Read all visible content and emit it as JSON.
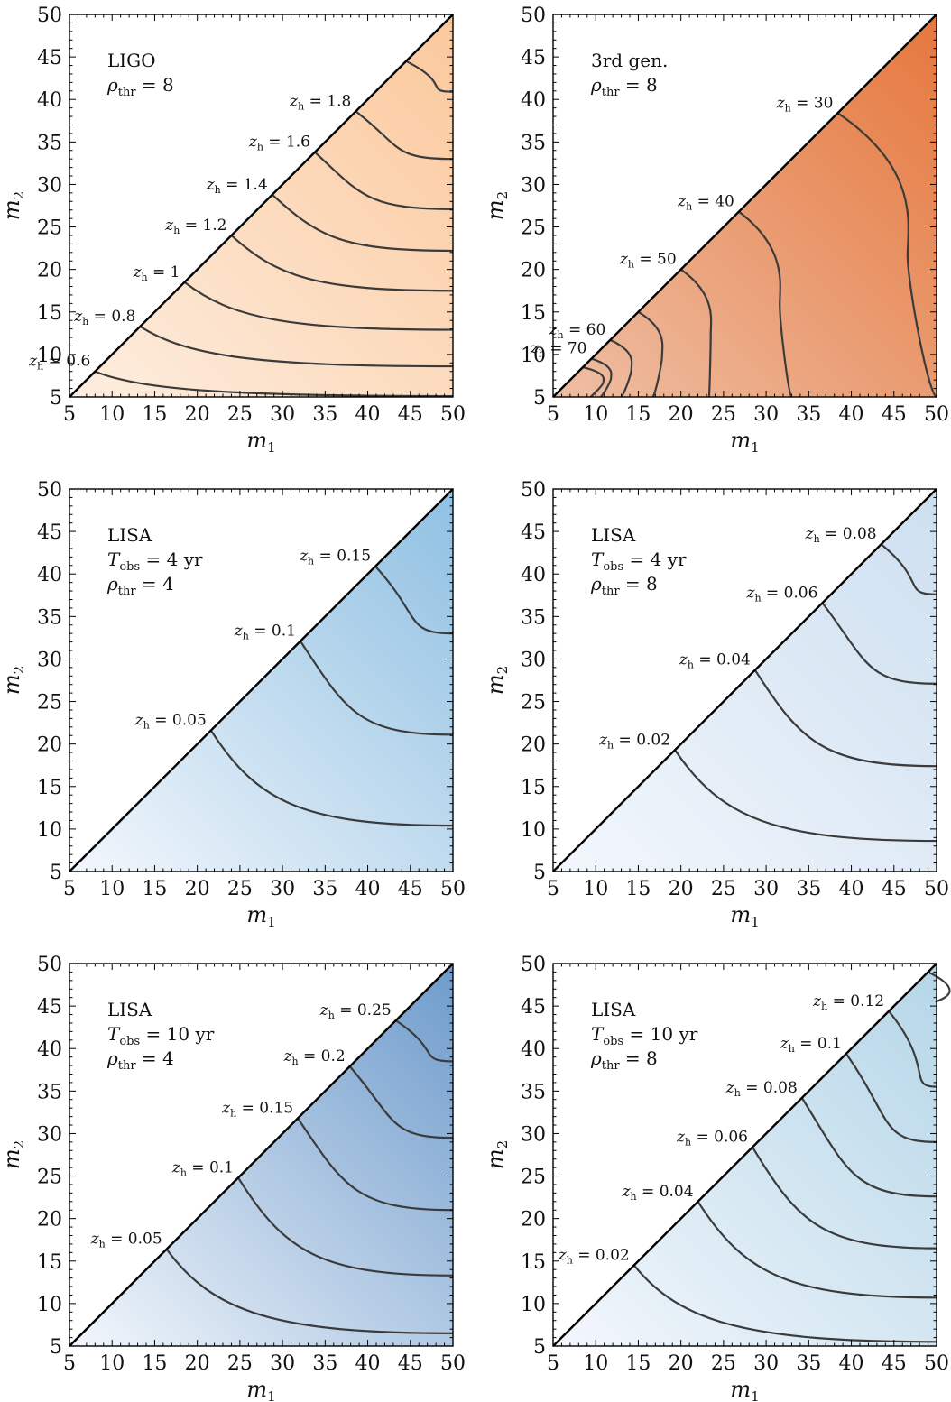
{
  "chart_data": [
    {
      "type": "contour",
      "xlabel": "m",
      "xlabel_sub": "1",
      "ylabel": "m",
      "ylabel_sub": "2",
      "xlim": [
        5,
        50
      ],
      "ylim": [
        5,
        50
      ],
      "xticks": [
        5,
        10,
        15,
        20,
        25,
        30,
        35,
        40,
        45,
        50
      ],
      "yticks": [
        5,
        10,
        15,
        20,
        25,
        30,
        35,
        40,
        45,
        50
      ],
      "annotation": [
        {
          "text": "LIGO"
        },
        {
          "var": "ρ",
          "sub": "thr",
          "rest": " = 8"
        }
      ],
      "colormap": [
        "#fdeee0",
        "#fbc89c"
      ],
      "contour_style": "flat",
      "contours": [
        {
          "label": "0.6",
          "m_diag": 8,
          "m_right": 5.1
        },
        {
          "label": "0.8",
          "m_diag": 13.3,
          "m_right": 8.6
        },
        {
          "label": "1",
          "m_diag": 18.5,
          "m_right": 12.9
        },
        {
          "label": "1.2",
          "m_diag": 24,
          "m_right": 17.5
        },
        {
          "label": "1.4",
          "m_diag": 28.8,
          "m_right": 22.2
        },
        {
          "label": "1.6",
          "m_diag": 33.8,
          "m_right": 27.1
        },
        {
          "label": "1.8",
          "m_diag": 38.6,
          "m_right": 33
        },
        {
          "label": "",
          "m_diag": 44.5,
          "m_right": 40.9
        }
      ]
    },
    {
      "type": "contour",
      "xlabel": "m",
      "xlabel_sub": "1",
      "ylabel": "m",
      "ylabel_sub": "2",
      "xlim": [
        5,
        50
      ],
      "ylim": [
        5,
        50
      ],
      "xticks": [
        5,
        10,
        15,
        20,
        25,
        30,
        35,
        40,
        45,
        50
      ],
      "yticks": [
        5,
        10,
        15,
        20,
        25,
        30,
        35,
        40,
        45,
        50
      ],
      "annotation": [
        {
          "text": "3rd gen."
        },
        {
          "var": "ρ",
          "sub": "thr",
          "rest": " = 8"
        }
      ],
      "colormap": [
        "#eebfa4",
        "#e6773d"
      ],
      "contour_style": "bow",
      "contours": [
        {
          "label": "",
          "m_diag": 8.5,
          "m_right": 9.4,
          "bulge": 10.9
        },
        {
          "label": "70",
          "m_diag": 9.5,
          "m_right": 10.6,
          "bulge": 11.8
        },
        {
          "label": "60",
          "m_diag": 11.7,
          "m_right": 13,
          "bulge": 14.2
        },
        {
          "label": "",
          "m_diag": 15,
          "m_right": 16.7,
          "bulge": 17.8
        },
        {
          "label": "50",
          "m_diag": 20,
          "m_right": 23.3,
          "bulge": 23.5
        },
        {
          "label": "40",
          "m_diag": 26.8,
          "m_right": 33,
          "bulge": 31.6
        },
        {
          "label": "30",
          "m_diag": 38.4,
          "m_right": 50,
          "bulge": 46.6
        }
      ]
    },
    {
      "type": "contour",
      "xlabel": "m",
      "xlabel_sub": "1",
      "ylabel": "m",
      "ylabel_sub": "2",
      "xlim": [
        5,
        50
      ],
      "ylim": [
        5,
        50
      ],
      "xticks": [
        5,
        10,
        15,
        20,
        25,
        30,
        35,
        40,
        45,
        50
      ],
      "yticks": [
        5,
        10,
        15,
        20,
        25,
        30,
        35,
        40,
        45,
        50
      ],
      "annotation": [
        {
          "text": "LISA"
        },
        {
          "var": "T",
          "sub": "obs",
          "rest": " = 4 yr"
        },
        {
          "var": "ρ",
          "sub": "thr",
          "rest": " = 4"
        }
      ],
      "colormap": [
        "#f3f7fc",
        "#8fc0e2"
      ],
      "contour_style": "flat",
      "contours": [
        {
          "label": "0.05",
          "m_diag": 21.6,
          "m_right": 10.4
        },
        {
          "label": "0.1",
          "m_diag": 32.1,
          "m_right": 21.1
        },
        {
          "label": "0.15",
          "m_diag": 40.9,
          "m_right": 33
        }
      ]
    },
    {
      "type": "contour",
      "xlabel": "m",
      "xlabel_sub": "1",
      "ylabel": "m",
      "ylabel_sub": "2",
      "xlim": [
        5,
        50
      ],
      "ylim": [
        5,
        50
      ],
      "xticks": [
        5,
        10,
        15,
        20,
        25,
        30,
        35,
        40,
        45,
        50
      ],
      "yticks": [
        5,
        10,
        15,
        20,
        25,
        30,
        35,
        40,
        45,
        50
      ],
      "annotation": [
        {
          "text": "LISA"
        },
        {
          "var": "T",
          "sub": "obs",
          "rest": " = 4 yr"
        },
        {
          "var": "ρ",
          "sub": "thr",
          "rest": " = 8"
        }
      ],
      "colormap": [
        "#f3f7fc",
        "#cddff0"
      ],
      "contour_style": "flat",
      "contours": [
        {
          "label": "0.02",
          "m_diag": 19.3,
          "m_right": 8.6
        },
        {
          "label": "0.04",
          "m_diag": 28.7,
          "m_right": 17.4
        },
        {
          "label": "0.06",
          "m_diag": 36.6,
          "m_right": 27.1
        },
        {
          "label": "0.08",
          "m_diag": 43.5,
          "m_right": 37.6
        }
      ]
    },
    {
      "type": "contour",
      "xlabel": "m",
      "xlabel_sub": "1",
      "ylabel": "m",
      "ylabel_sub": "2",
      "xlim": [
        5,
        50
      ],
      "ylim": [
        5,
        50
      ],
      "xticks": [
        5,
        10,
        15,
        20,
        25,
        30,
        35,
        40,
        45,
        50
      ],
      "yticks": [
        5,
        10,
        15,
        20,
        25,
        30,
        35,
        40,
        45,
        50
      ],
      "annotation": [
        {
          "text": "LISA"
        },
        {
          "var": "T",
          "sub": "obs",
          "rest": " = 10 yr"
        },
        {
          "var": "ρ",
          "sub": "thr",
          "rest": " = 4"
        }
      ],
      "colormap": [
        "#f3f7fc",
        "#6e9bcb"
      ],
      "contour_style": "flat",
      "contours": [
        {
          "label": "0.05",
          "m_diag": 16.4,
          "m_right": 6.5
        },
        {
          "label": "0.1",
          "m_diag": 24.8,
          "m_right": 13.3
        },
        {
          "label": "0.15",
          "m_diag": 31.8,
          "m_right": 21
        },
        {
          "label": "0.2",
          "m_diag": 37.9,
          "m_right": 29.5
        },
        {
          "label": "0.25",
          "m_diag": 43.3,
          "m_right": 38.5
        }
      ]
    },
    {
      "type": "contour",
      "xlabel": "m",
      "xlabel_sub": "1",
      "ylabel": "m",
      "ylabel_sub": "2",
      "xlim": [
        5,
        50
      ],
      "ylim": [
        5,
        50
      ],
      "xticks": [
        5,
        10,
        15,
        20,
        25,
        30,
        35,
        40,
        45,
        50
      ],
      "yticks": [
        5,
        10,
        15,
        20,
        25,
        30,
        35,
        40,
        45,
        50
      ],
      "annotation": [
        {
          "text": "LISA"
        },
        {
          "var": "T",
          "sub": "obs",
          "rest": " = 10 yr"
        },
        {
          "var": "ρ",
          "sub": "thr",
          "rest": " = 8"
        }
      ],
      "colormap": [
        "#f3f7fc",
        "#b5d6e8"
      ],
      "contour_style": "flat",
      "contours": [
        {
          "label": "0.02",
          "m_diag": 14.5,
          "m_right": 5.5
        },
        {
          "label": "0.04",
          "m_diag": 22,
          "m_right": 10.7
        },
        {
          "label": "0.06",
          "m_diag": 28.4,
          "m_right": 16.5
        },
        {
          "label": "0.08",
          "m_diag": 34.2,
          "m_right": 22.6
        },
        {
          "label": "0.1",
          "m_diag": 39.4,
          "m_right": 29
        },
        {
          "label": "0.12",
          "m_diag": 44.4,
          "m_right": 35.5
        },
        {
          "label": "",
          "m_diag": 49,
          "m_right": 45.5
        }
      ]
    }
  ]
}
